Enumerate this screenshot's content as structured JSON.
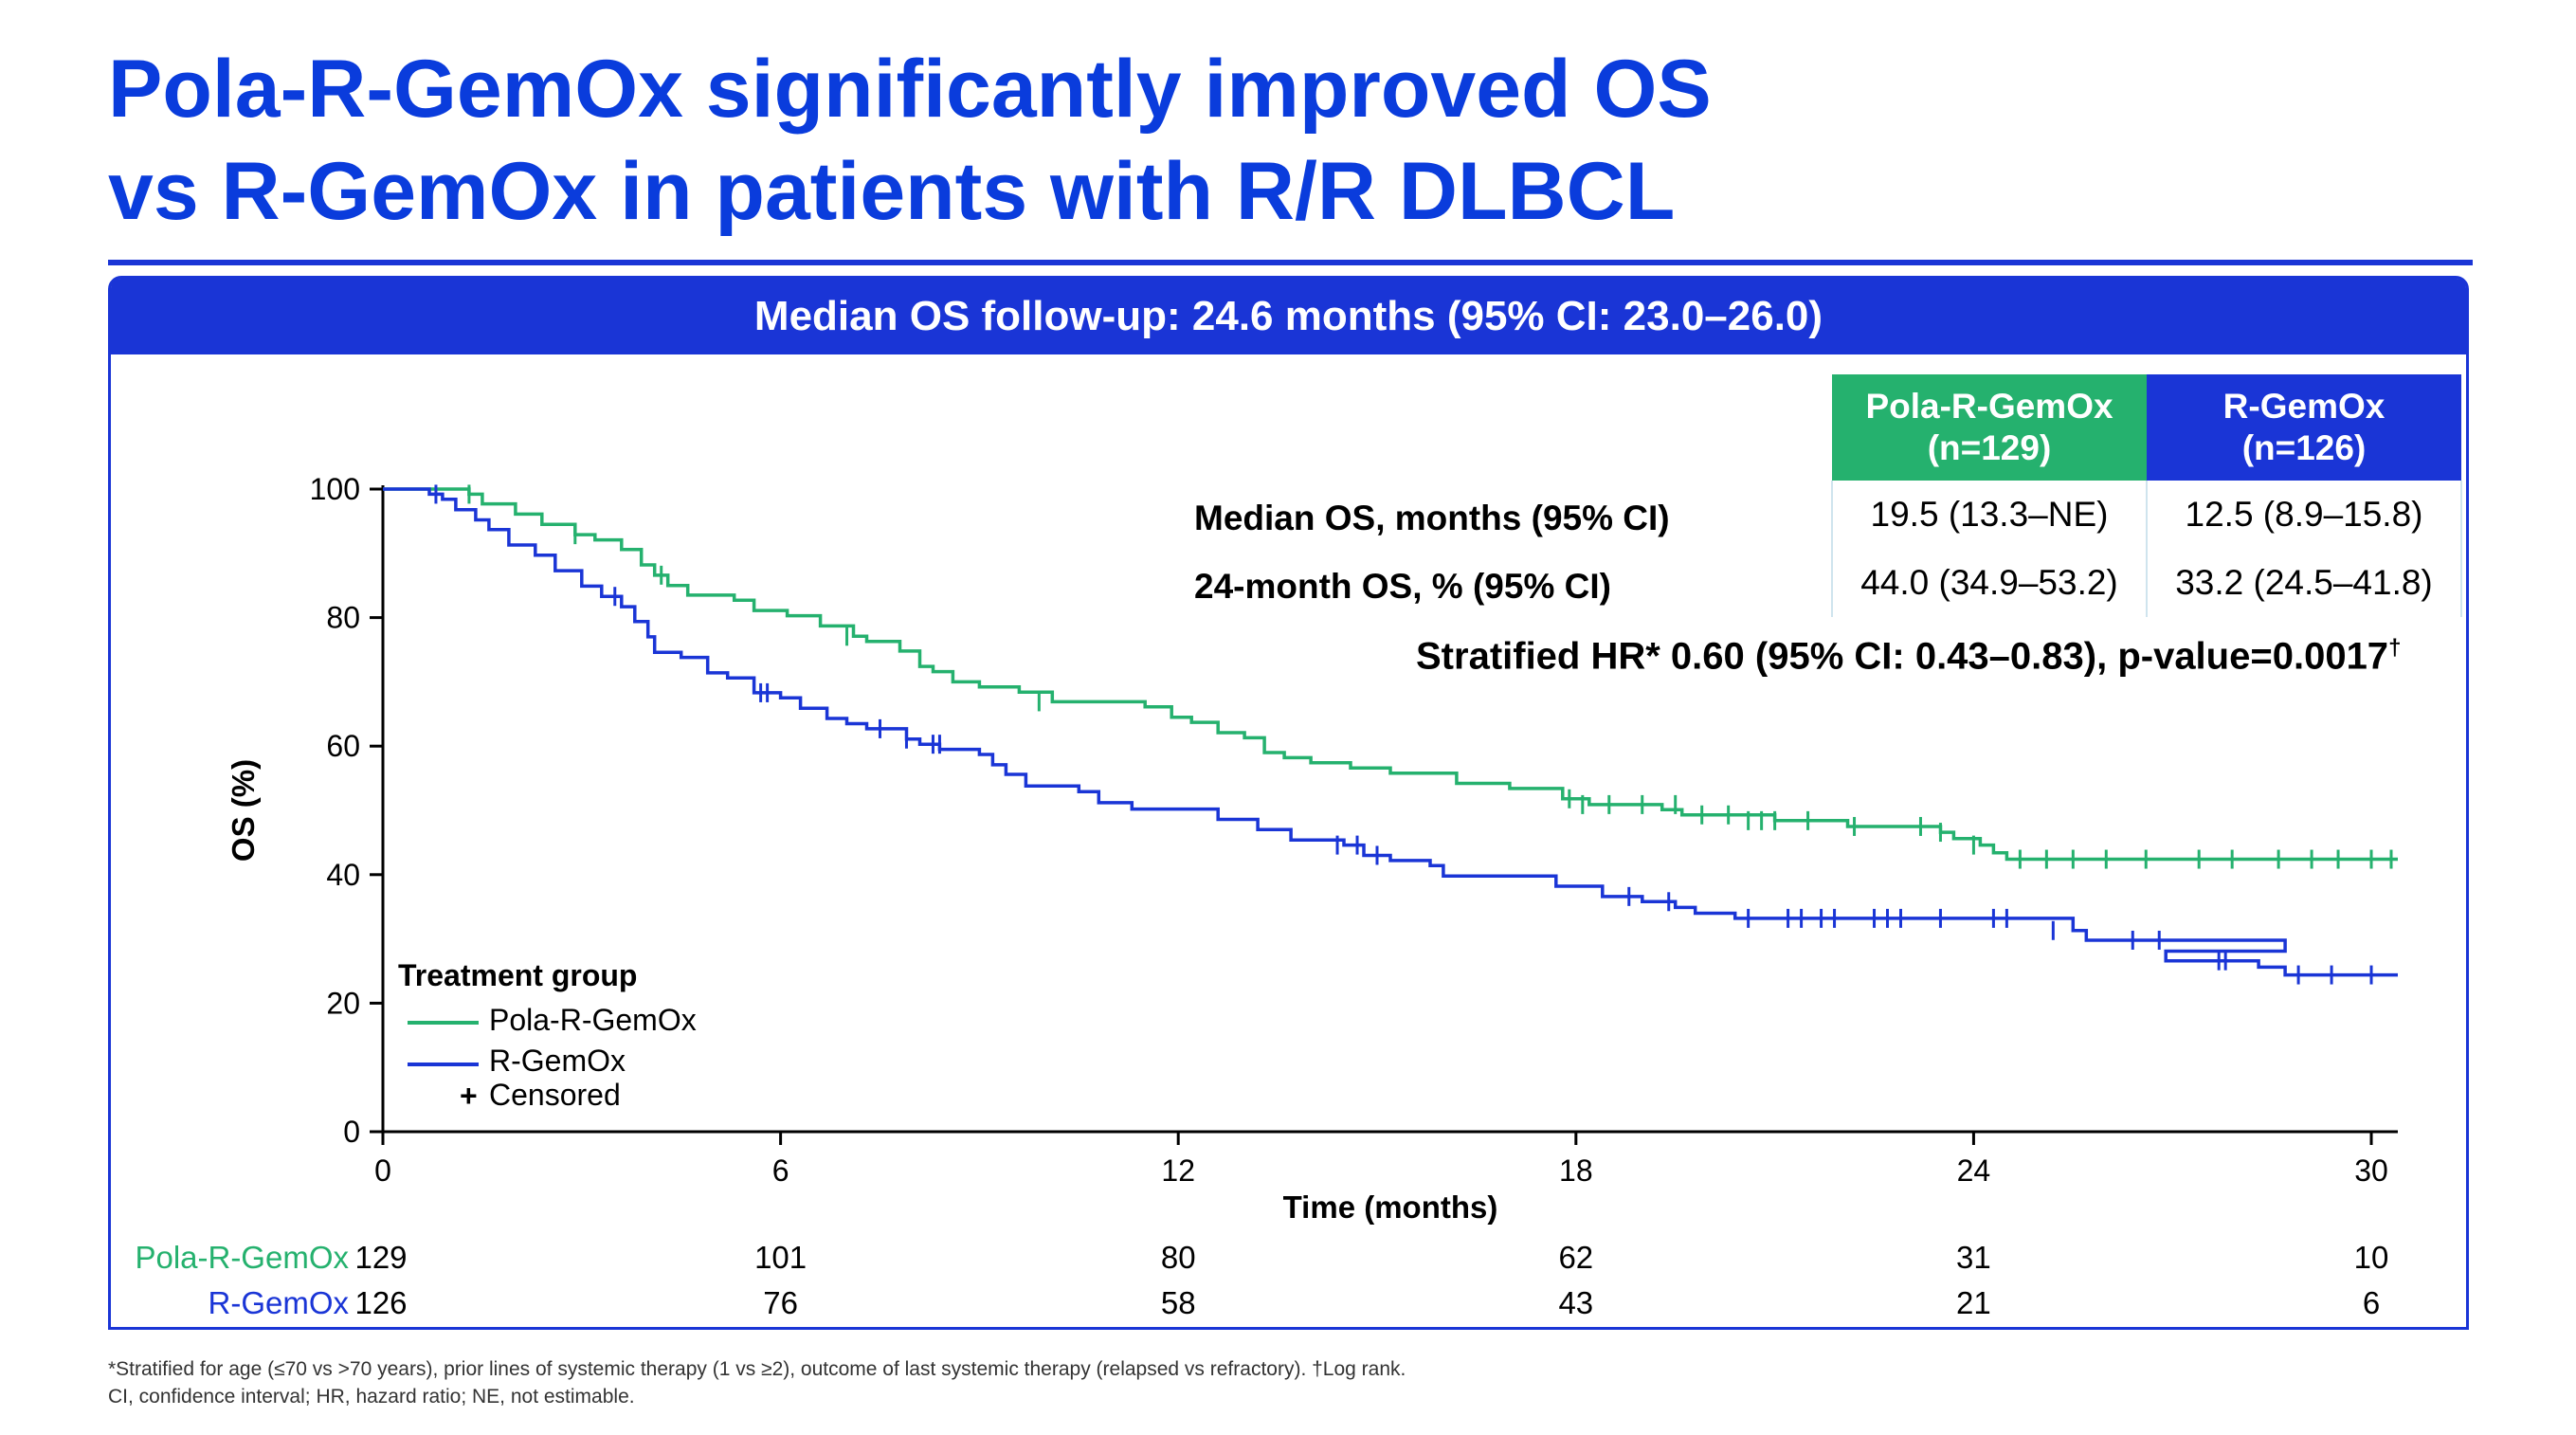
{
  "title": {
    "line1": "Pola-R-GemOx significantly improved OS",
    "line2": "vs R-GemOx in patients with R/R DLBCL"
  },
  "panel_header": "Median OS follow-up: 24.6 months (95% CI: 23.0–26.0)",
  "stats_table": {
    "col_pola": "Pola-R-GemOx",
    "col_pola_n": "(n=129)",
    "col_rgem": "R-GemOx",
    "col_rgem_n": "(n=126)",
    "row1_label": "Median OS, months (95% CI)",
    "row1_pola": "19.5 (13.3–NE)",
    "row1_rgem": "12.5 (8.9–15.8)",
    "row2_label": "24-month OS, % (95% CI)",
    "row2_pola": "44.0 (34.9–53.2)",
    "row2_rgem": "33.2 (24.5–41.8)"
  },
  "hr_text": "Stratified HR* 0.60 (95% CI: 0.43–0.83), p-value=0.0017",
  "hr_dagger": "†",
  "legend": {
    "title": "Treatment group",
    "pola": "Pola-R-GemOx",
    "rgem": "R-GemOx",
    "censor_symbol": "+",
    "censored": "Censored"
  },
  "risk_table": {
    "pola_label": "Pola-R-GemOx",
    "rgem_label": "R-GemOx",
    "pola": [
      129,
      101,
      80,
      62,
      31,
      10
    ],
    "rgem": [
      126,
      76,
      58,
      43,
      21,
      6
    ]
  },
  "footnotes": {
    "line1": "*Stratified for age (≤70 vs >70 years), prior lines of systemic therapy (1 vs ≥2), outcome of last systemic therapy (relapsed vs refractory). †Log rank.",
    "line2": "CI, confidence interval; HR, hazard ratio; NE, not estimable."
  },
  "colors": {
    "pola": "#25b16e",
    "rgem": "#1a35d6",
    "title": "#0a3cdc"
  },
  "chart_data": {
    "type": "line",
    "xlabel": "Time (months)",
    "ylabel": "OS (%)",
    "xlim": [
      0,
      30.4
    ],
    "ylim": [
      0,
      100
    ],
    "xticks": [
      0,
      6,
      12,
      18,
      24,
      30
    ],
    "yticks": [
      0,
      20,
      40,
      60,
      80,
      100
    ],
    "series": [
      {
        "name": "Pola-R-GemOx",
        "color": "#25b16e",
        "steps": [
          [
            0,
            100
          ],
          [
            1.3,
            99.2
          ],
          [
            1.5,
            97.7
          ],
          [
            2.0,
            96.1
          ],
          [
            2.4,
            94.5
          ],
          [
            2.9,
            92.9
          ],
          [
            3.2,
            92.1
          ],
          [
            3.6,
            90.6
          ],
          [
            3.9,
            88.2
          ],
          [
            4.1,
            86.6
          ],
          [
            4.3,
            85.0
          ],
          [
            4.6,
            83.5
          ],
          [
            5.0,
            83.5
          ],
          [
            5.3,
            82.7
          ],
          [
            5.6,
            81.1
          ],
          [
            6.1,
            80.3
          ],
          [
            6.6,
            78.7
          ],
          [
            7.1,
            77.1
          ],
          [
            7.3,
            76.3
          ],
          [
            7.8,
            74.8
          ],
          [
            8.1,
            72.4
          ],
          [
            8.3,
            71.6
          ],
          [
            8.6,
            70.0
          ],
          [
            9.0,
            69.2
          ],
          [
            9.6,
            68.4
          ],
          [
            10.1,
            66.9
          ],
          [
            11.5,
            66.1
          ],
          [
            11.9,
            64.5
          ],
          [
            12.2,
            63.7
          ],
          [
            12.6,
            62.1
          ],
          [
            13.0,
            61.3
          ],
          [
            13.3,
            59.0
          ],
          [
            13.6,
            58.2
          ],
          [
            14.0,
            57.4
          ],
          [
            14.6,
            56.6
          ],
          [
            15.2,
            55.8
          ],
          [
            16.2,
            54.2
          ],
          [
            17.0,
            53.4
          ],
          [
            17.8,
            51.8
          ],
          [
            18.2,
            50.9
          ],
          [
            19.3,
            50.1
          ],
          [
            19.6,
            49.3
          ],
          [
            21.0,
            48.4
          ],
          [
            22.1,
            47.5
          ],
          [
            23.5,
            46.6
          ],
          [
            23.7,
            45.6
          ],
          [
            24.1,
            44.6
          ],
          [
            24.3,
            43.4
          ],
          [
            24.5,
            42.4
          ],
          [
            30.4,
            42.4
          ]
        ],
        "censored": [
          [
            1.3,
            99.2
          ],
          [
            2.9,
            92.9
          ],
          [
            4.2,
            86.6
          ],
          [
            7.0,
            77.1
          ],
          [
            9.9,
            66.9
          ],
          [
            17.9,
            51.8
          ],
          [
            18.1,
            50.9
          ],
          [
            18.5,
            50.9
          ],
          [
            19.0,
            50.9
          ],
          [
            19.5,
            50.9
          ],
          [
            19.9,
            49.3
          ],
          [
            20.3,
            49.3
          ],
          [
            20.6,
            48.4
          ],
          [
            20.8,
            48.4
          ],
          [
            21.0,
            48.4
          ],
          [
            21.5,
            48.4
          ],
          [
            22.2,
            47.5
          ],
          [
            23.2,
            47.5
          ],
          [
            23.5,
            46.6
          ],
          [
            24.0,
            44.6
          ],
          [
            24.7,
            42.4
          ],
          [
            25.1,
            42.4
          ],
          [
            25.5,
            42.4
          ],
          [
            26.0,
            42.4
          ],
          [
            26.6,
            42.4
          ],
          [
            27.4,
            42.4
          ],
          [
            27.9,
            42.4
          ],
          [
            28.6,
            42.4
          ],
          [
            29.1,
            42.4
          ],
          [
            29.5,
            42.4
          ],
          [
            30.0,
            42.4
          ],
          [
            30.3,
            42.4
          ]
        ]
      },
      {
        "name": "R-GemOx",
        "color": "#1a35d6",
        "steps": [
          [
            0,
            100
          ],
          [
            0.7,
            99.2
          ],
          [
            0.9,
            98.4
          ],
          [
            1.1,
            96.8
          ],
          [
            1.4,
            95.2
          ],
          [
            1.6,
            93.7
          ],
          [
            1.9,
            91.3
          ],
          [
            2.3,
            89.7
          ],
          [
            2.6,
            87.3
          ],
          [
            3.0,
            84.9
          ],
          [
            3.3,
            83.3
          ],
          [
            3.6,
            81.7
          ],
          [
            3.8,
            79.4
          ],
          [
            4.0,
            77.0
          ],
          [
            4.1,
            74.6
          ],
          [
            4.5,
            73.8
          ],
          [
            4.9,
            71.4
          ],
          [
            5.2,
            70.6
          ],
          [
            5.6,
            68.3
          ],
          [
            6.0,
            67.5
          ],
          [
            6.3,
            65.9
          ],
          [
            6.7,
            64.3
          ],
          [
            7.0,
            63.5
          ],
          [
            7.3,
            62.7
          ],
          [
            7.9,
            61.1
          ],
          [
            8.1,
            60.3
          ],
          [
            8.4,
            59.5
          ],
          [
            9.0,
            58.7
          ],
          [
            9.2,
            57.1
          ],
          [
            9.4,
            55.6
          ],
          [
            9.7,
            53.8
          ],
          [
            10.5,
            52.9
          ],
          [
            10.8,
            51.2
          ],
          [
            11.3,
            50.2
          ],
          [
            12.6,
            48.6
          ],
          [
            13.2,
            47.0
          ],
          [
            13.7,
            45.4
          ],
          [
            14.5,
            44.6
          ],
          [
            14.8,
            43.0
          ],
          [
            15.2,
            42.2
          ],
          [
            15.8,
            41.4
          ],
          [
            16.0,
            39.8
          ],
          [
            17.7,
            38.2
          ],
          [
            18.4,
            36.6
          ],
          [
            19.0,
            35.8
          ],
          [
            19.5,
            34.9
          ],
          [
            19.8,
            34.0
          ],
          [
            20.4,
            33.2
          ],
          [
            25.5,
            31.3
          ],
          [
            25.7,
            29.8
          ],
          [
            28.7,
            28.1
          ],
          [
            26.9,
            26.6
          ],
          [
            28.3,
            25.6
          ],
          [
            28.7,
            24.4
          ],
          [
            30.4,
            24.4
          ]
        ],
        "censored": [
          [
            0.8,
            99.2
          ],
          [
            3.5,
            83.3
          ],
          [
            5.7,
            68.3
          ],
          [
            5.8,
            68.3
          ],
          [
            7.5,
            62.7
          ],
          [
            7.9,
            61.1
          ],
          [
            8.3,
            60.3
          ],
          [
            8.4,
            60.3
          ],
          [
            14.4,
            44.6
          ],
          [
            14.7,
            44.6
          ],
          [
            15.0,
            43.0
          ],
          [
            18.8,
            36.6
          ],
          [
            19.4,
            35.8
          ],
          [
            20.6,
            33.2
          ],
          [
            21.2,
            33.2
          ],
          [
            21.4,
            33.2
          ],
          [
            21.7,
            33.2
          ],
          [
            21.9,
            33.2
          ],
          [
            22.5,
            33.2
          ],
          [
            22.7,
            33.2
          ],
          [
            22.9,
            33.2
          ],
          [
            23.5,
            33.2
          ],
          [
            24.3,
            33.2
          ],
          [
            24.5,
            33.2
          ],
          [
            25.2,
            31.3
          ],
          [
            26.4,
            29.8
          ],
          [
            26.8,
            29.8
          ],
          [
            27.7,
            26.6
          ],
          [
            27.8,
            26.6
          ],
          [
            28.9,
            24.4
          ],
          [
            29.4,
            24.4
          ],
          [
            30.0,
            24.4
          ]
        ]
      }
    ]
  }
}
